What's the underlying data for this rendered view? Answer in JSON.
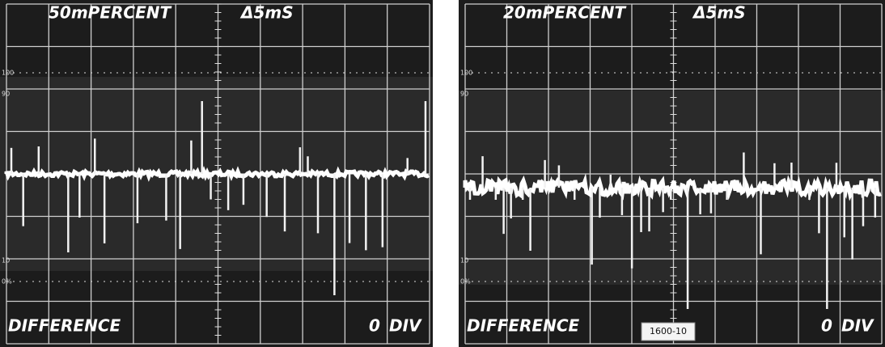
{
  "panels": [
    {
      "scale": "50mPERCENT",
      "timebase": "Δ5mS",
      "mode": "DIFFERENCE",
      "position": "0",
      "unit": "DIV",
      "graticule": [
        "100",
        "90",
        "10",
        "0%"
      ]
    },
    {
      "scale": "20mPERCENT",
      "timebase": "Δ5mS",
      "mode": "DIFFERENCE",
      "position": "0",
      "unit": "DIV",
      "graticule": [
        "100",
        "90",
        "10",
        "0%"
      ],
      "figure_id": "1600-10"
    }
  ]
}
